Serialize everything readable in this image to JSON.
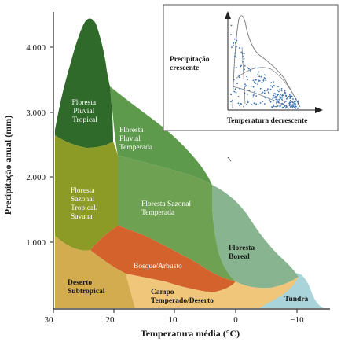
{
  "axes": {
    "x_title": "Temperatura média (°C)",
    "y_title": "Precipitação anual (mm)",
    "x_ticks": [
      "30",
      "20",
      "10",
      "0",
      "−10"
    ],
    "y_ticks": [
      "1.000",
      "2.000",
      "3.000",
      "4.000"
    ]
  },
  "biomes": {
    "floresta_pluvial_tropical": [
      "Floresta",
      "Pluvial",
      "Tropical"
    ],
    "floresta_pluvial_temperada": [
      "Floresta",
      "Pluvial",
      "Temperada"
    ],
    "floresta_sazonal_tropical": [
      "Floresta",
      "Sazonal",
      "Tropical/",
      "Savana"
    ],
    "floresta_sazonal_temperada": [
      "Floresta Sazonal",
      "Temperada"
    ],
    "floresta_boreal": [
      "Floresta",
      "Boreal"
    ],
    "bosque_arbusto": [
      "Bosque/Arbusto"
    ],
    "deserto_subtropical": [
      "Deserto",
      "Subtropical"
    ],
    "campo_temperado": [
      "Campo",
      "Temperado/Deserto"
    ],
    "tundra": [
      "Tundra"
    ]
  },
  "inset": {
    "y_label": [
      "Precipitação",
      "crescente"
    ],
    "x_label": "Temperatura decrescente"
  },
  "colors": {
    "floresta_pluvial_tropical": "#2f6a2a",
    "floresta_pluvial_temperada": "#5e9a4c",
    "floresta_sazonal_tropical": "#8c9a26",
    "floresta_sazonal_temperada": "#6fa152",
    "floresta_boreal": "#88b590",
    "bosque_arbusto": "#d4622c",
    "deserto_subtropical": "#d2ac4e",
    "campo_temperado": "#f0c77a",
    "tundra": "#a9d4d9",
    "inset_points": "#3a6fb0"
  }
}
